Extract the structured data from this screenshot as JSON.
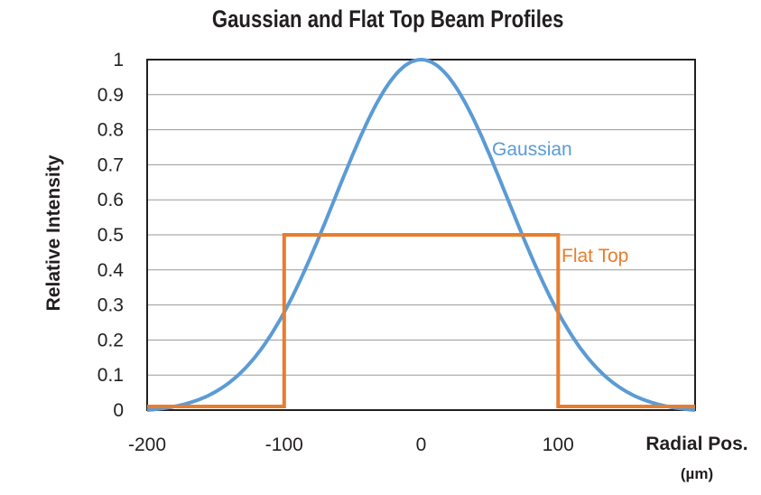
{
  "chart_data": {
    "type": "line",
    "title": "Gaussian and Flat Top Beam Profiles",
    "xlabel": "Radial Pos.",
    "xlabel_line2": "(µm)",
    "ylabel": "Relative Intensity",
    "xlim": [
      -200,
      200
    ],
    "ylim": [
      0,
      1
    ],
    "x_ticks": [
      "-200",
      "-100",
      "0",
      "100"
    ],
    "y_ticks": [
      "0",
      "0.1",
      "0.2",
      "0.3",
      "0.4",
      "0.5",
      "0.6",
      "0.7",
      "0.8",
      "0.9",
      "1"
    ],
    "grid": true,
    "series": [
      {
        "name": "Gaussian",
        "color": "#5b9bd5",
        "x": [
          -200,
          -175,
          -150,
          -125,
          -100,
          -75,
          -50,
          -25,
          0,
          25,
          50,
          75,
          100,
          125,
          150,
          175,
          200
        ],
        "y": [
          0.0,
          0.003,
          0.03,
          0.1,
          0.22,
          0.46,
          0.71,
          0.92,
          1.0,
          0.92,
          0.71,
          0.46,
          0.22,
          0.1,
          0.03,
          0.003,
          0.0
        ]
      },
      {
        "name": "Flat Top",
        "color": "#e87d2e",
        "x": [
          -200,
          -100,
          -100,
          100,
          100,
          200
        ],
        "y": [
          0.0,
          0.0,
          0.5,
          0.5,
          0.0,
          0.0
        ]
      }
    ]
  }
}
